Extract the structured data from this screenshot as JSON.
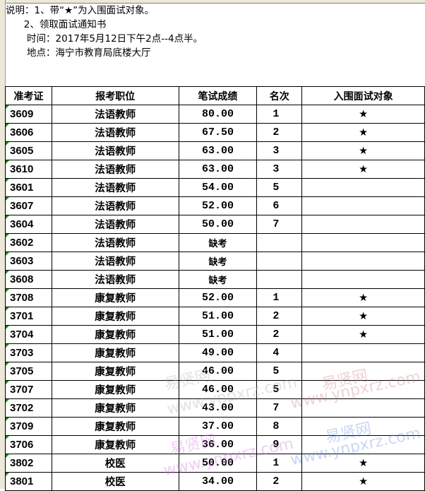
{
  "notes": [
    "说明：1、带“★”为入围面试对象。",
    "      2、领取面试通知书",
    "       时间：2017年5月12日下午2点--4点半。",
    "       地点：海宁市教育局底楼大厅"
  ],
  "columns": [
    "准考证",
    "报考职位",
    "笔试成绩",
    "名次",
    "入围面试对象"
  ],
  "rows": [
    [
      "3609",
      "法语教师",
      "80.00",
      "1",
      "★"
    ],
    [
      "3606",
      "法语教师",
      "67.50",
      "2",
      "★"
    ],
    [
      "3605",
      "法语教师",
      "63.00",
      "3",
      "★"
    ],
    [
      "3610",
      "法语教师",
      "63.00",
      "3",
      "★"
    ],
    [
      "3601",
      "法语教师",
      "54.00",
      "5",
      ""
    ],
    [
      "3607",
      "法语教师",
      "52.00",
      "6",
      ""
    ],
    [
      "3604",
      "法语教师",
      "50.00",
      "7",
      ""
    ],
    [
      "3602",
      "法语教师",
      "缺考",
      "",
      ""
    ],
    [
      "3603",
      "法语教师",
      "缺考",
      "",
      ""
    ],
    [
      "3608",
      "法语教师",
      "缺考",
      "",
      ""
    ],
    [
      "3708",
      "康复教师",
      "52.00",
      "1",
      "★"
    ],
    [
      "3701",
      "康复教师",
      "51.00",
      "2",
      "★"
    ],
    [
      "3704",
      "康复教师",
      "51.00",
      "2",
      "★"
    ],
    [
      "3703",
      "康复教师",
      "49.00",
      "4",
      ""
    ],
    [
      "3705",
      "康复教师",
      "46.00",
      "5",
      ""
    ],
    [
      "3707",
      "康复教师",
      "46.00",
      "5",
      ""
    ],
    [
      "3702",
      "康复教师",
      "43.00",
      "7",
      ""
    ],
    [
      "3709",
      "康复教师",
      "37.00",
      "8",
      ""
    ],
    [
      "3706",
      "康复教师",
      "36.00",
      "9",
      ""
    ],
    [
      "3802",
      "校医",
      "50.00",
      "1",
      "★"
    ],
    [
      "3801",
      "校医",
      "34.00",
      "2",
      "★"
    ]
  ],
  "watermark": {
    "name": "易贤网",
    "url": "www.ynpxrz.com"
  },
  "colors": {
    "star": "#000000",
    "cell_marker": "#1a8a1a",
    "gutter": "#ece9d8"
  }
}
